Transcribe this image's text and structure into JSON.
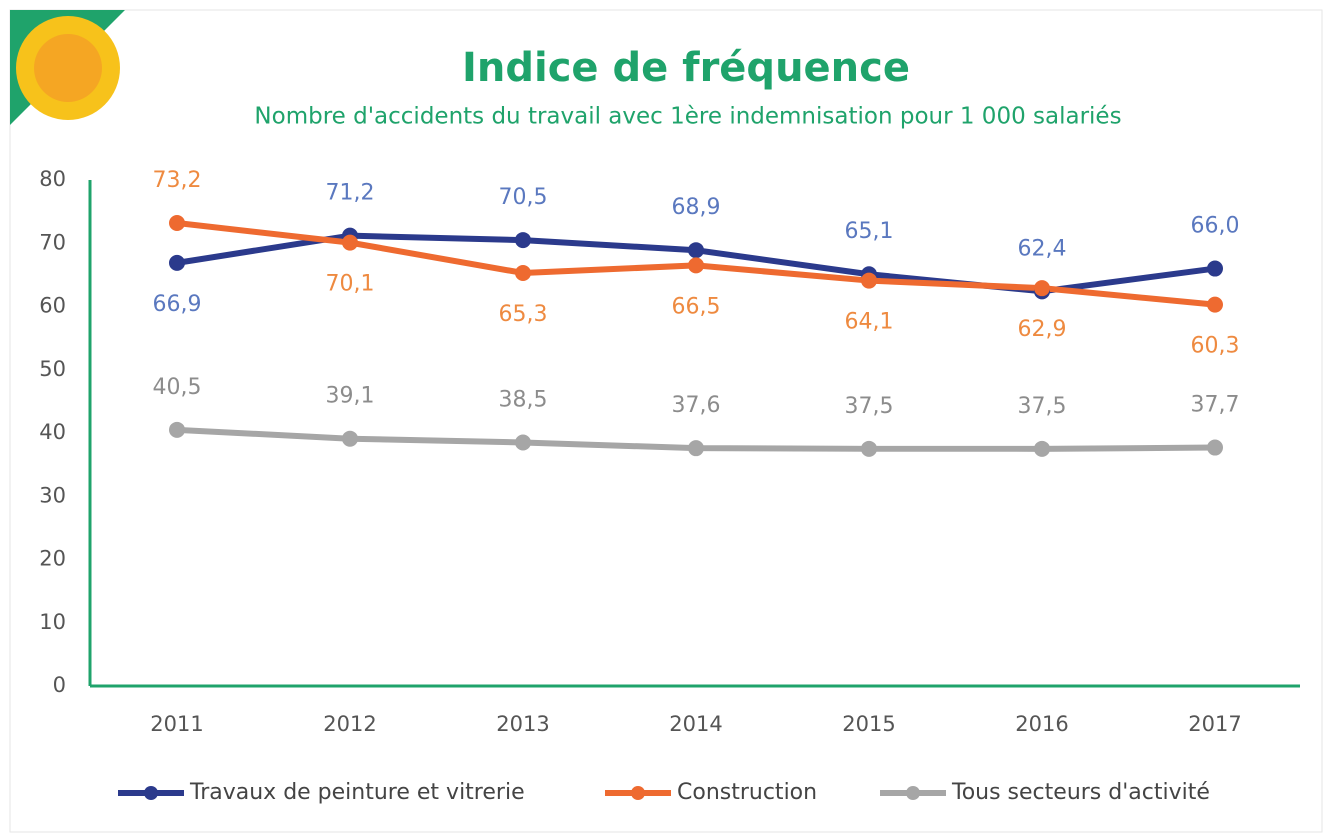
{
  "chart_data": {
    "type": "line",
    "title": "Indice de fréquence",
    "subtitle": "Nombre  d'accidents du travail avec 1ère indemnisation pour 1 000 salariés",
    "categories": [
      "2011",
      "2012",
      "2013",
      "2014",
      "2015",
      "2016",
      "2017"
    ],
    "series": [
      {
        "name": "Travaux de peinture et vitrerie",
        "color": "#2b3a8c",
        "label_color": "#5a78bf",
        "values": [
          66.9,
          71.2,
          70.5,
          68.9,
          65.1,
          62.4,
          66.0
        ],
        "value_labels": [
          "66,9",
          "71,2",
          "70,5",
          "68,9",
          "65,1",
          "62,4",
          "66,0"
        ]
      },
      {
        "name": "Construction",
        "color": "#ee6a30",
        "label_color": "#ee8a40",
        "values": [
          73.2,
          70.1,
          65.3,
          66.5,
          64.1,
          62.9,
          60.3
        ],
        "value_labels": [
          "73,2",
          "70,1",
          "65,3",
          "66,5",
          "64,1",
          "62,9",
          "60,3"
        ]
      },
      {
        "name": "Tous secteurs d'activité",
        "color": "#a6a6a6",
        "label_color": "#8c8c8c",
        "values": [
          40.5,
          39.1,
          38.5,
          37.6,
          37.5,
          37.5,
          37.7
        ],
        "value_labels": [
          "40,5",
          "39,1",
          "38,5",
          "37,6",
          "37,5",
          "37,5",
          "37,7"
        ]
      }
    ],
    "ylim": [
      0,
      80
    ],
    "yticks": [
      0,
      10,
      20,
      30,
      40,
      50,
      60,
      70,
      80
    ],
    "axis_color": "#1fa36b",
    "grid": false,
    "legend": "bottom"
  }
}
